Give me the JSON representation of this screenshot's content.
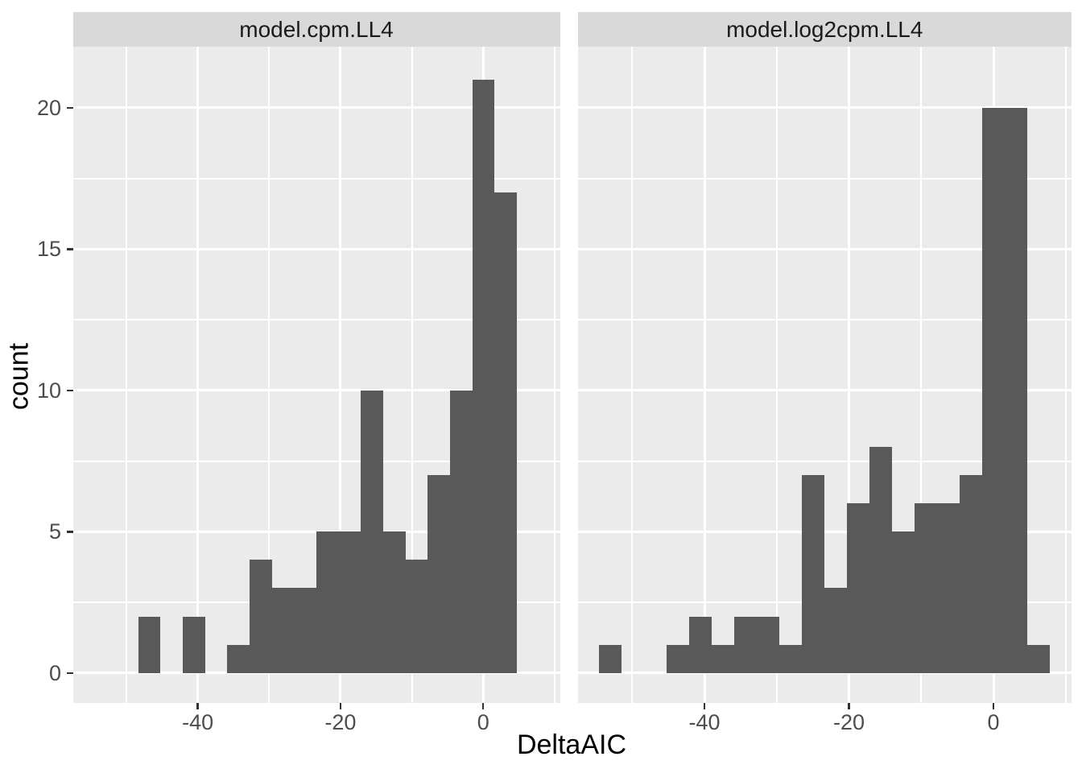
{
  "figure": {
    "x_axis_title": "DeltaAIC",
    "y_axis_title": "count",
    "background": "#FFFFFF"
  },
  "facets": [
    {
      "label": "model.cpm.LL4"
    },
    {
      "label": "model.log2cpm.LL4"
    }
  ],
  "chart_data": [
    {
      "type": "bar",
      "subtype": "histogram",
      "facet": "model.cpm.LL4",
      "xlabel": "DeltaAIC",
      "ylabel": "count",
      "bin_start": -54.64,
      "bin_width": 3.12,
      "counts": [
        0,
        0,
        2,
        0,
        2,
        0,
        1,
        4,
        3,
        3,
        5,
        5,
        10,
        5,
        4,
        7,
        10,
        21,
        17,
        0
      ],
      "total_observations": 99,
      "max_count": 21,
      "xlim": [
        -57.5,
        10.75
      ],
      "ylim": [
        0,
        22
      ],
      "x_tick_values": [
        -40,
        -20,
        0
      ],
      "x_tick_labels": [
        "-40",
        "-20",
        "0"
      ],
      "y_tick_values": [
        0,
        5,
        10,
        15,
        20
      ],
      "y_tick_labels": [
        "0",
        "5",
        "10",
        "15",
        "20"
      ],
      "x_minor_tick_values": [
        -50,
        -30,
        -10,
        10
      ],
      "y_minor_tick_values": [
        2.5,
        7.5,
        12.5,
        17.5
      ],
      "grid": "on",
      "legend": "none"
    },
    {
      "type": "bar",
      "subtype": "histogram",
      "facet": "model.log2cpm.LL4",
      "xlabel": "DeltaAIC",
      "ylabel": "count",
      "bin_start": -54.64,
      "bin_width": 3.12,
      "counts": [
        1,
        0,
        0,
        1,
        2,
        1,
        2,
        2,
        1,
        7,
        3,
        6,
        8,
        5,
        6,
        6,
        7,
        20,
        20,
        1
      ],
      "total_observations": 99,
      "max_count": 20,
      "xlim": [
        -57.5,
        10.75
      ],
      "ylim": [
        0,
        22
      ],
      "x_tick_values": [
        -40,
        -20,
        0
      ],
      "x_tick_labels": [
        "-40",
        "-20",
        "0"
      ],
      "y_tick_values": [
        0,
        5,
        10,
        15,
        20
      ],
      "y_tick_labels": [
        "0",
        "5",
        "10",
        "15",
        "20"
      ],
      "x_minor_tick_values": [
        -50,
        -30,
        -10,
        10
      ],
      "y_minor_tick_values": [
        2.5,
        7.5,
        12.5,
        17.5
      ],
      "grid": "on",
      "legend": "none"
    }
  ],
  "colors": {
    "bar_fill": "#595959",
    "panel_background": "#EBEBEB",
    "strip_background": "#D9D9D9",
    "strip_text": "#1A1A1A",
    "gridline": "#FFFFFF",
    "tick_mark": "#333333",
    "tick_label": "#4D4D4D",
    "axis_title": "#000000"
  }
}
